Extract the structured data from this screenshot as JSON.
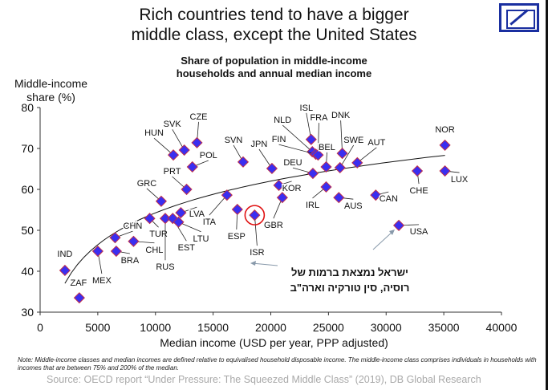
{
  "title_line1": "Rich countries tend to have a bigger",
  "title_line2": "middle class, except the United States",
  "subtitle_line1": "Share of population in middle-income",
  "subtitle_line2": "households and annual median income",
  "note": "Note: Middle-income classes and median incomes are defined relative to equivalised household disposable income. The middle-income class comprises individuals in households with incomes that are between 75% and 200% of the median.",
  "source": "Source: OECD report “Under Pressure: The Squeezed Middle Class” (2019), DB Global Research",
  "annotation_line1": "ישראל נמצאת ברמות של",
  "annotation_line2": "רוסיה, סין טורקיה וארה\"ב",
  "colors": {
    "marker_fill": "#3a2ef0",
    "marker_edge": "#c0304a",
    "highlight": "#e01010",
    "logo": "#1a2fa0"
  },
  "chart_data": {
    "type": "scatter",
    "xlabel": "Median income (USD per year, PPP adjusted)",
    "ylabel_line1": "Middle-income",
    "ylabel_line2": "share (%)",
    "xlim": [
      0,
      40000
    ],
    "ylim": [
      30,
      80
    ],
    "xticks": [
      "0",
      "5000",
      "10000",
      "15000",
      "20000",
      "25000",
      "30000",
      "35000",
      "40000"
    ],
    "yticks": [
      "30",
      "40",
      "50",
      "60",
      "70",
      "80"
    ],
    "grid": false,
    "trendline": {
      "type": "log",
      "a": -48.9,
      "b": 11.2,
      "x_range": [
        2150,
        35100
      ]
    },
    "highlight": "ISR",
    "points": [
      {
        "label": "IND",
        "x": 2150,
        "y": 40.2
      },
      {
        "label": "ZAF",
        "x": 3400,
        "y": 33.5
      },
      {
        "label": "MEX",
        "x": 5000,
        "y": 44.9
      },
      {
        "label": "BRA",
        "x": 6600,
        "y": 44.9
      },
      {
        "label": "CHN",
        "x": 6500,
        "y": 48.2
      },
      {
        "label": "CHL",
        "x": 8100,
        "y": 47.3
      },
      {
        "label": "TUR",
        "x": 9500,
        "y": 52.9
      },
      {
        "label": "RUS",
        "x": 10850,
        "y": 52.9
      },
      {
        "label": "EST",
        "x": 11500,
        "y": 52.9
      },
      {
        "label": "LTU",
        "x": 12000,
        "y": 52.0
      },
      {
        "label": "LVA",
        "x": 12200,
        "y": 54.3
      },
      {
        "label": "GRC",
        "x": 10500,
        "y": 57.1
      },
      {
        "label": "PRT",
        "x": 12700,
        "y": 60.0
      },
      {
        "label": "POL",
        "x": 13200,
        "y": 65.5
      },
      {
        "label": "HUN",
        "x": 11550,
        "y": 68.4
      },
      {
        "label": "SVK",
        "x": 12500,
        "y": 69.6
      },
      {
        "label": "CZE",
        "x": 13600,
        "y": 71.4
      },
      {
        "label": "ITA",
        "x": 16200,
        "y": 58.6
      },
      {
        "label": "ESP",
        "x": 17100,
        "y": 55.1
      },
      {
        "label": "ISR",
        "x": 18600,
        "y": 53.7
      },
      {
        "label": "SVN",
        "x": 17600,
        "y": 66.7
      },
      {
        "label": "JPN",
        "x": 20100,
        "y": 65.1
      },
      {
        "label": "KOR",
        "x": 20700,
        "y": 61.0
      },
      {
        "label": "GBR",
        "x": 21000,
        "y": 58.0
      },
      {
        "label": "DEU",
        "x": 23650,
        "y": 63.9
      },
      {
        "label": "NLD",
        "x": 23600,
        "y": 69.2
      },
      {
        "label": "ISL",
        "x": 23500,
        "y": 72.2
      },
      {
        "label": "FIN",
        "x": 23900,
        "y": 68.6
      },
      {
        "label": "FRA",
        "x": 24100,
        "y": 68.4
      },
      {
        "label": "BEL",
        "x": 24800,
        "y": 65.5
      },
      {
        "label": "IRL",
        "x": 24800,
        "y": 60.6
      },
      {
        "label": "AUS",
        "x": 25900,
        "y": 58.0
      },
      {
        "label": "DNK",
        "x": 26200,
        "y": 68.8
      },
      {
        "label": "SWE",
        "x": 26000,
        "y": 65.3
      },
      {
        "label": "AUT",
        "x": 27500,
        "y": 66.5
      },
      {
        "label": "CAN",
        "x": 29100,
        "y": 58.6
      },
      {
        "label": "USA",
        "x": 31100,
        "y": 51.2
      },
      {
        "label": "CHE",
        "x": 32700,
        "y": 64.5
      },
      {
        "label": "NOR",
        "x": 35100,
        "y": 70.8
      },
      {
        "label": "LUX",
        "x": 35100,
        "y": 64.5
      }
    ]
  }
}
